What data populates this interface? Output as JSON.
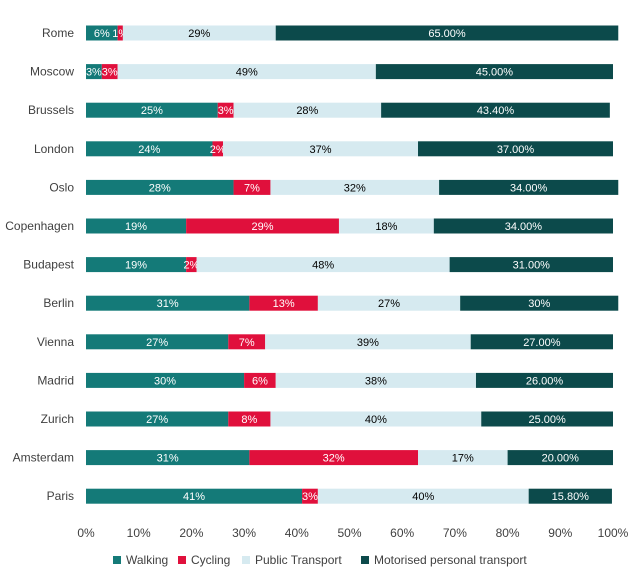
{
  "chart_data": {
    "type": "bar",
    "orientation": "horizontal",
    "stacked": "100%",
    "categories": [
      "Rome",
      "Moscow",
      "Brussels",
      "London",
      "Oslo",
      "Copenhagen",
      "Budapest",
      "Berlin",
      "Vienna",
      "Madrid",
      "Zurich",
      "Amsterdam",
      "Paris"
    ],
    "series": [
      {
        "name": "Walking",
        "color": "#147A78",
        "label_color": "#ffffff",
        "values": [
          6,
          3,
          25,
          24,
          28,
          19,
          19,
          31,
          27,
          30,
          27,
          31,
          41
        ],
        "labels": [
          "6%",
          "3%",
          "25%",
          "24%",
          "28%",
          "19%",
          "19%",
          "31%",
          "27%",
          "30%",
          "27%",
          "31%",
          "41%"
        ]
      },
      {
        "name": "Cycling",
        "color": "#E0103C",
        "label_color": "#ffffff",
        "values": [
          1,
          3,
          3,
          2,
          7,
          29,
          2,
          13,
          7,
          6,
          8,
          32,
          3
        ],
        "labels": [
          "1%",
          "3%",
          "3%",
          "2%",
          "7%",
          "29%",
          "2%",
          "13%",
          "7%",
          "6%",
          "8%",
          "32%",
          "3%"
        ]
      },
      {
        "name": "Public Transport",
        "color": "#D6EAF0",
        "label_color": "#000000",
        "values": [
          29,
          49,
          28,
          37,
          32,
          18,
          48,
          27,
          39,
          38,
          40,
          17,
          40
        ],
        "labels": [
          "29%",
          "49%",
          "28%",
          "37%",
          "32%",
          "18%",
          "48%",
          "27%",
          "39%",
          "38%",
          "40%",
          "17%",
          "40%"
        ]
      },
      {
        "name": "Motorised personal transport",
        "color": "#0C4A4B",
        "label_color": "#ffffff",
        "values": [
          65,
          45,
          43.4,
          37,
          34,
          34,
          31,
          30,
          27,
          26,
          25,
          20,
          15.8
        ],
        "labels": [
          "65.00%",
          "45.00%",
          "43.40%",
          "37.00%",
          "34.00%",
          "34.00%",
          "31.00%",
          "30%",
          "27.00%",
          "26.00%",
          "25.00%",
          "20.00%",
          "15.80%"
        ]
      }
    ],
    "xlim": [
      0,
      100
    ],
    "x_ticks": [
      "0%",
      "10%",
      "20%",
      "30%",
      "40%",
      "50%",
      "60%",
      "70%",
      "80%",
      "90%",
      "100%"
    ],
    "grid": false,
    "legend": "bottom",
    "title": "",
    "xlabel": "",
    "ylabel": ""
  }
}
